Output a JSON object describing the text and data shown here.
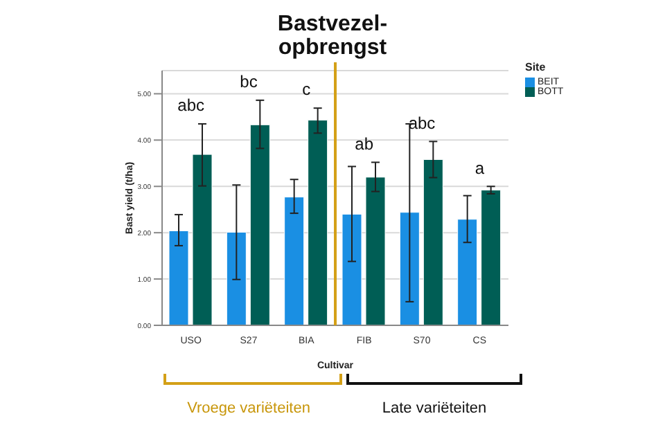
{
  "chart_data": {
    "type": "bar",
    "title": "Bastvezel-\nopbrengst",
    "xlabel": "Cultivar",
    "ylabel": "Bast yield (t/ha)",
    "legend_title": "Site",
    "categories": [
      "USO",
      "S27",
      "BIA",
      "FIB",
      "S70",
      "CS"
    ],
    "series": [
      {
        "name": "BEIT",
        "color": "#1a8fe3",
        "values": [
          2.04,
          2.01,
          2.77,
          2.4,
          2.44,
          2.29
        ],
        "errors": [
          [
            1.72,
            2.39
          ],
          [
            0.99,
            3.03
          ],
          [
            2.42,
            3.15
          ],
          [
            1.38,
            3.43
          ],
          [
            0.51,
            4.35
          ],
          [
            1.79,
            2.8
          ]
        ]
      },
      {
        "name": "BOTT",
        "color": "#005e55",
        "values": [
          3.69,
          4.33,
          4.43,
          3.2,
          3.58,
          2.92
        ],
        "errors": [
          [
            3.01,
            4.35
          ],
          [
            3.82,
            4.86
          ],
          [
            4.15,
            4.69
          ],
          [
            2.89,
            3.52
          ],
          [
            3.19,
            3.97
          ],
          [
            2.84,
            3.0
          ]
        ]
      }
    ],
    "ylim": [
      0,
      5.5
    ],
    "yticks": [
      {
        "value": 0,
        "label": "0.00"
      },
      {
        "value": 1,
        "label": "1.00"
      },
      {
        "value": 2,
        "label": "2.00"
      },
      {
        "value": 3,
        "label": "3.00"
      },
      {
        "value": 4,
        "label": "4.00"
      },
      {
        "value": 5,
        "label": "5.00"
      }
    ],
    "grid": "y",
    "legend": "top right",
    "ref_lines": [
      {
        "axis": "x",
        "value": "FIB",
        "color": "#d4a017"
      }
    ],
    "annotations": [
      "abc",
      "bc",
      "c",
      "ab",
      "abc",
      "a",
      "Vroege variëteiten",
      "Late variëteiten"
    ]
  }
}
